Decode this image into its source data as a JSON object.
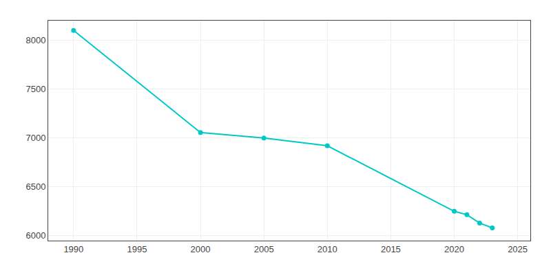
{
  "chart_data": {
    "type": "line",
    "x": [
      1990,
      2000,
      2005,
      2010,
      2020,
      2021,
      2022,
      2023
    ],
    "values": [
      8100,
      7055,
      7000,
      6920,
      6250,
      6215,
      6130,
      6080
    ],
    "color": "#00c8c8",
    "marker": "circle",
    "xlim": [
      1988,
      2026
    ],
    "ylim": [
      5950,
      8200
    ],
    "xticks": [
      1990,
      1995,
      2000,
      2005,
      2010,
      2015,
      2020,
      2025
    ],
    "yticks": [
      6000,
      6500,
      7000,
      7500,
      8000
    ],
    "grid": true
  }
}
